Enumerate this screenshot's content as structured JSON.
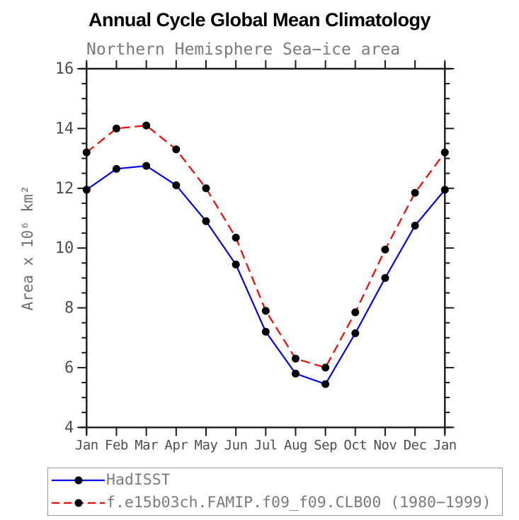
{
  "title": "Annual Cycle Global Mean Climatology",
  "chart_data": {
    "type": "line",
    "title": "Annual Cycle Global Mean Climatology",
    "subtitle": "Northern Hemisphere Sea−ice area",
    "xlabel": "",
    "ylabel": "Area x 10⁶ km²",
    "categories": [
      "Jan",
      "Feb",
      "Mar",
      "Apr",
      "May",
      "Jun",
      "Jul",
      "Aug",
      "Sep",
      "Oct",
      "Nov",
      "Dec",
      "Jan"
    ],
    "ylim": [
      4,
      16
    ],
    "ytick_major": [
      4,
      6,
      8,
      10,
      12,
      14,
      16
    ],
    "ytick_minor_step": 0.5,
    "grid": false,
    "legend_position": "bottom",
    "series": [
      {
        "name": "HadISST",
        "style": "solid",
        "dash": "none",
        "color": "#0000ff",
        "marker": "filled-circle",
        "marker_color": "#000000",
        "values": [
          11.95,
          12.65,
          12.75,
          12.1,
          10.9,
          9.45,
          7.2,
          5.8,
          5.45,
          7.15,
          9.0,
          10.75,
          11.95
        ]
      },
      {
        "name": "f.e15b03ch.FAMIP.f09_f09.CLB00 (1980−1999)",
        "style": "dashed",
        "dash": "13 7",
        "color": "#ff0000",
        "marker": "filled-circle",
        "marker_color": "#000000",
        "values": [
          13.2,
          14.0,
          14.1,
          13.3,
          12.0,
          10.35,
          7.9,
          6.3,
          6.0,
          7.85,
          9.95,
          11.85,
          13.2
        ]
      }
    ]
  },
  "colors": {
    "axis": "#1a1a1a",
    "tick_label": "#4d4d4d",
    "subtitle_text": "#7a7a7a",
    "legend_text": "#7a7a7a",
    "legend_border": "#9a9a9a"
  }
}
